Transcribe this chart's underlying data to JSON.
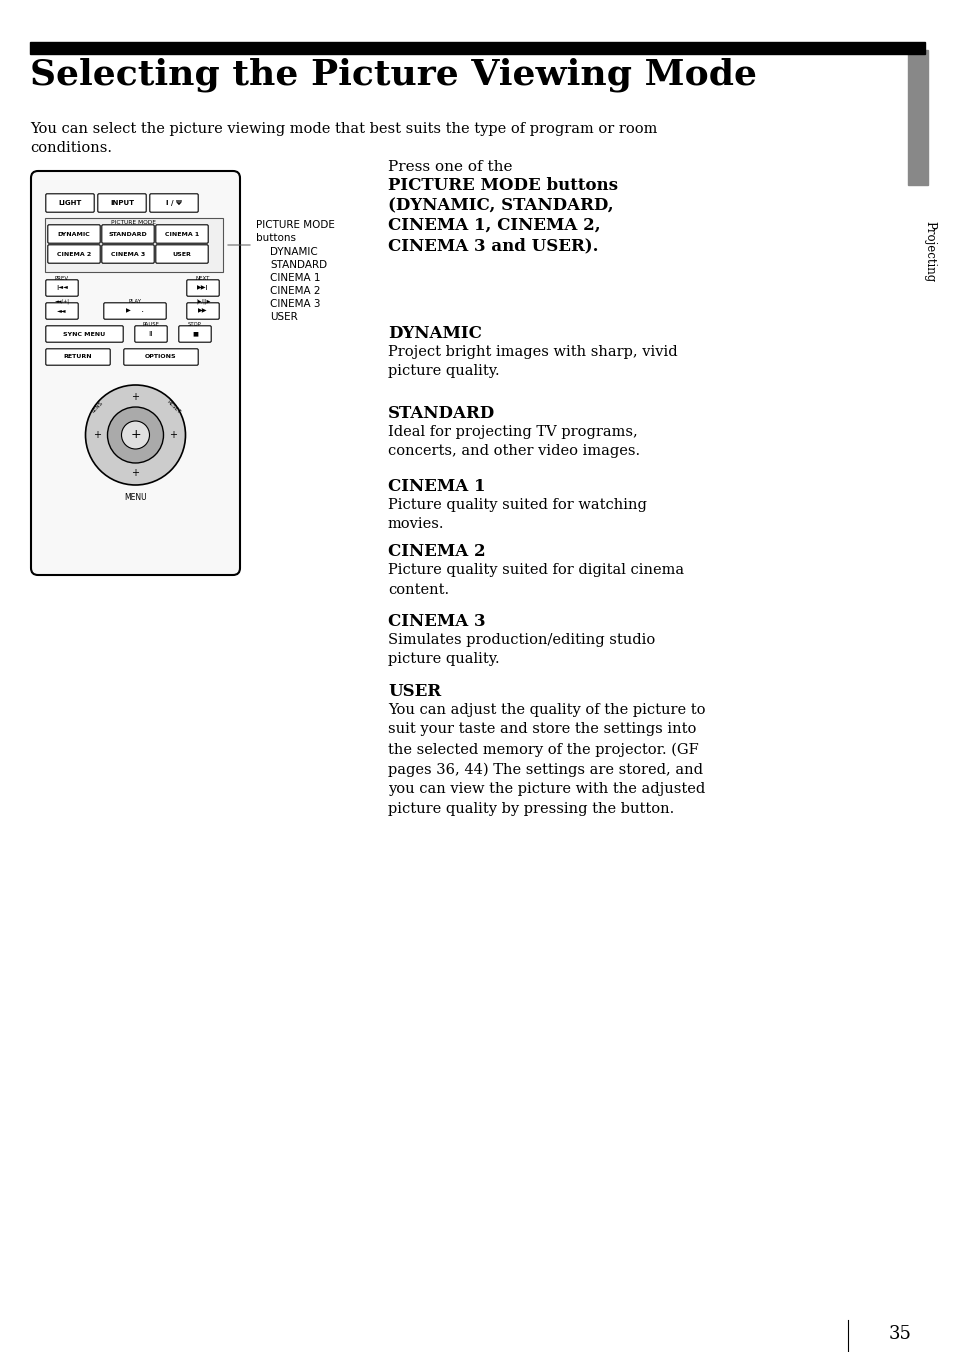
{
  "title": "Selecting the Picture Viewing Mode",
  "page_number": "35",
  "intro_text": "You can select the picture viewing mode that best suits the type of program or room\nconditions.",
  "sidebar_text": "Projecting",
  "press_header_normal": "Press one of the",
  "press_header_bold": [
    "PICTURE MODE buttons",
    "(DYNAMIC, STANDARD,",
    "CINEMA 1, CINEMA 2,",
    "CINEMA 3 and USER)."
  ],
  "sections": [
    {
      "heading": "DYNAMIC",
      "body": "Project bright images with sharp, vivid\npicture quality."
    },
    {
      "heading": "STANDARD",
      "body": "Ideal for projecting TV programs,\nconcerts, and other video images."
    },
    {
      "heading": "CINEMA 1",
      "body": "Picture quality suited for watching\nmovies."
    },
    {
      "heading": "CINEMA 2",
      "body": "Picture quality suited for digital cinema\ncontent."
    },
    {
      "heading": "CINEMA 3",
      "body": "Simulates production/editing studio\npicture quality."
    },
    {
      "heading": "USER",
      "body": "You can adjust the quality of the picture to\nsuit your taste and store the settings into\nthe selected memory of the projector. (GF\npages 36, 44) The settings are stored, and\nyou can view the picture with the adjusted\npicture quality by pressing the button."
    }
  ],
  "bg_color": "#ffffff",
  "header_bar_color": "#000000",
  "sidebar_bar_color": "#888888"
}
